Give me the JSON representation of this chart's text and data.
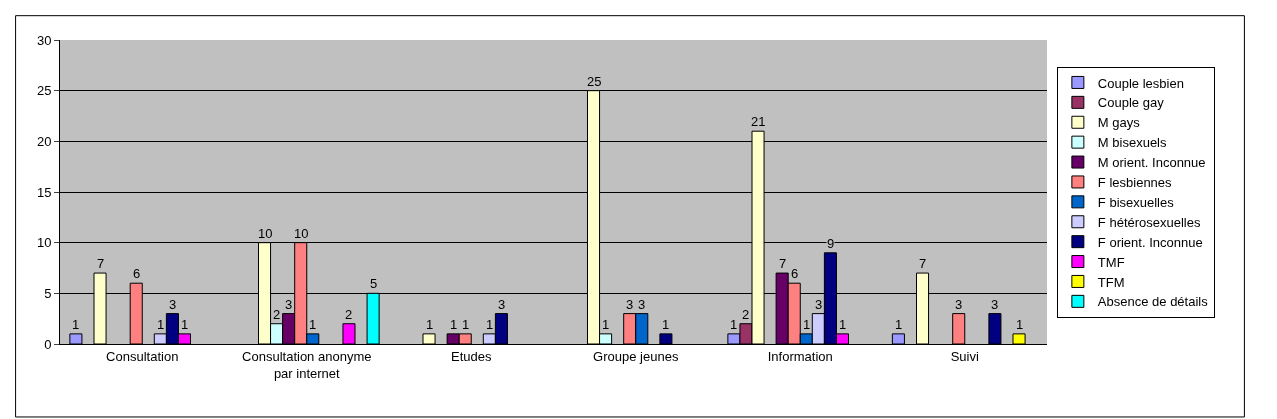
{
  "chart_data": {
    "type": "bar",
    "categories": [
      "Consultation",
      "Consultation anonyme par internet",
      "Etudes",
      "Groupe jeunes",
      "Information",
      "Suivi"
    ],
    "series": [
      {
        "name": "Couple lesbien",
        "color": "#9999ff",
        "values": [
          1,
          null,
          null,
          null,
          1,
          1
        ]
      },
      {
        "name": "Couple gay",
        "color": "#993366",
        "values": [
          null,
          null,
          null,
          null,
          2,
          null
        ]
      },
      {
        "name": "M gays",
        "color": "#ffffcc",
        "values": [
          7,
          10,
          1,
          25,
          21,
          7
        ]
      },
      {
        "name": "M bisexuels",
        "color": "#ccffff",
        "values": [
          null,
          2,
          null,
          1,
          null,
          null
        ]
      },
      {
        "name": "M orient. Inconnue",
        "color": "#660066",
        "values": [
          null,
          3,
          1,
          null,
          7,
          null
        ]
      },
      {
        "name": "F lesbiennes",
        "color": "#ff8080",
        "values": [
          6,
          10,
          1,
          3,
          6,
          3
        ]
      },
      {
        "name": "F bisexuelles",
        "color": "#0066cc",
        "values": [
          null,
          1,
          null,
          3,
          1,
          null
        ]
      },
      {
        "name": "F hétérosexuelles",
        "color": "#ccccff",
        "values": [
          1,
          null,
          1,
          null,
          3,
          null
        ]
      },
      {
        "name": "F orient. Inconnue",
        "color": "#000080",
        "values": [
          3,
          null,
          3,
          1,
          9,
          3
        ]
      },
      {
        "name": "TMF",
        "color": "#ff00ff",
        "values": [
          1,
          2,
          null,
          null,
          1,
          null
        ]
      },
      {
        "name": "TFM",
        "color": "#ffff00",
        "values": [
          null,
          null,
          null,
          null,
          null,
          1
        ]
      },
      {
        "name": "Absence de détails",
        "color": "#00ffff",
        "values": [
          null,
          5,
          null,
          null,
          null,
          null
        ]
      }
    ],
    "ylim": [
      0,
      30
    ],
    "yticks": [
      0,
      5,
      10,
      15,
      20,
      25,
      30
    ],
    "grid": "y",
    "legend": "right",
    "data_labels": true
  }
}
